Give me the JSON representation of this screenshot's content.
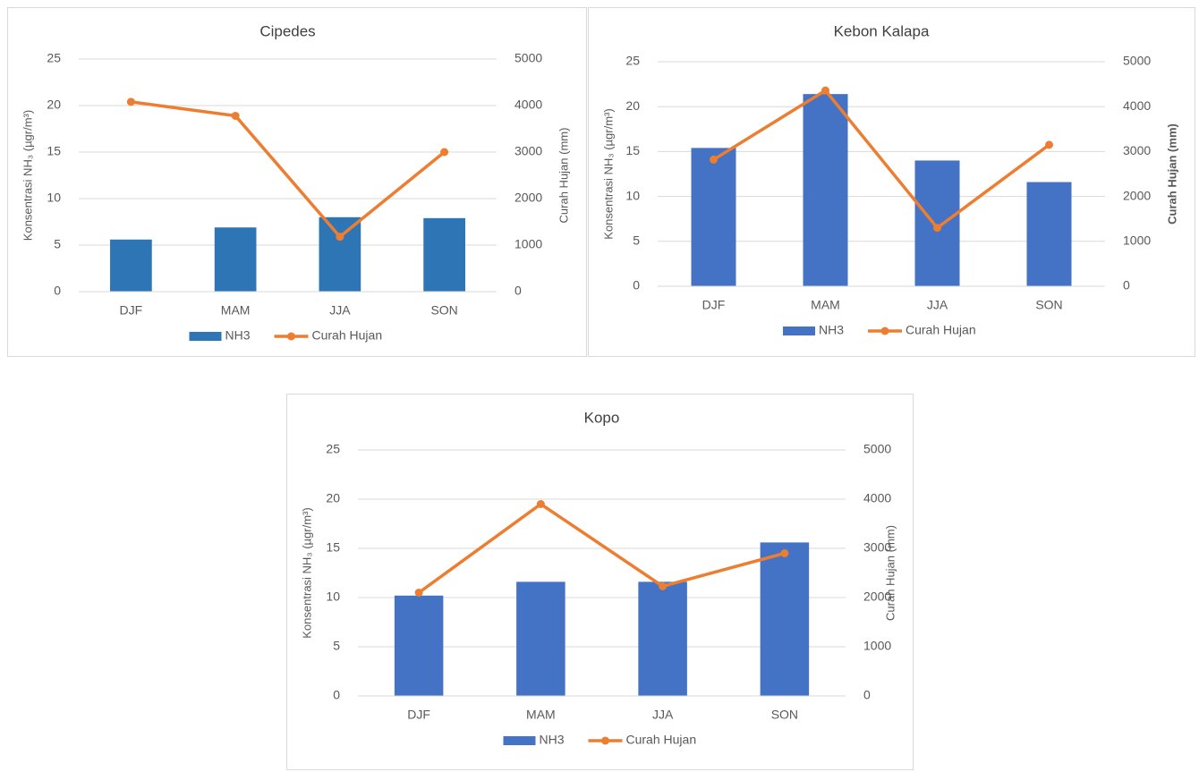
{
  "chart_data": [
    {
      "type": "combo",
      "title": "Cipedes",
      "categories": [
        "DJF",
        "MAM",
        "JJA",
        "SON"
      ],
      "ylabel": "Konsentrasi NH₃ (µgr/m³)",
      "y2label": "Curah Hujan (mm)",
      "ylim": [
        0,
        25
      ],
      "yticks": [
        0,
        5,
        10,
        15,
        20,
        25
      ],
      "y2lim": [
        0,
        5000
      ],
      "y2ticks": [
        0,
        1000,
        2000,
        3000,
        4000,
        5000
      ],
      "grid": true,
      "series": [
        {
          "name": "NH3",
          "type": "bar",
          "color": "#2e75b6",
          "values": [
            5.6,
            6.9,
            8.0,
            7.9
          ]
        },
        {
          "name": "Curah Hujan",
          "type": "line",
          "axis": "y2",
          "color": "#ed7d31",
          "values": [
            4080,
            3780,
            1180,
            3000
          ]
        }
      ]
    },
    {
      "type": "combo",
      "title": "Kebon Kalapa",
      "categories": [
        "DJF",
        "MAM",
        "JJA",
        "SON"
      ],
      "ylabel": "Konsentrasi NH₃ (µgr/m³)",
      "y2label": "Curah Hujan (mm)",
      "ylim": [
        0,
        25
      ],
      "yticks": [
        0,
        5,
        10,
        15,
        20,
        25
      ],
      "y2lim": [
        0,
        5000
      ],
      "y2ticks": [
        0,
        1000,
        2000,
        3000,
        4000,
        5000
      ],
      "grid": true,
      "series": [
        {
          "name": "NH3",
          "type": "bar",
          "color": "#4472c4",
          "values": [
            15.4,
            21.4,
            14.0,
            11.6
          ]
        },
        {
          "name": "Curah Hujan",
          "type": "line",
          "axis": "y2",
          "color": "#ed7d31",
          "values": [
            2820,
            4360,
            1300,
            3150
          ]
        }
      ]
    },
    {
      "type": "combo",
      "title": "Kopo",
      "categories": [
        "DJF",
        "MAM",
        "JJA",
        "SON"
      ],
      "ylabel": "Konsentrasi NH₃ (µgr/m³)",
      "y2label": "Curah Hujan (mm)",
      "ylim": [
        0,
        25
      ],
      "yticks": [
        0,
        5,
        10,
        15,
        20,
        25
      ],
      "y2lim": [
        0,
        5000
      ],
      "y2ticks": [
        0,
        1000,
        2000,
        3000,
        4000,
        5000
      ],
      "grid": true,
      "series": [
        {
          "name": "NH3",
          "type": "bar",
          "color": "#4472c4",
          "values": [
            10.2,
            11.6,
            11.6,
            15.6
          ]
        },
        {
          "name": "Curah Hujan",
          "type": "line",
          "axis": "y2",
          "color": "#ed7d31",
          "values": [
            2100,
            3900,
            2230,
            2900
          ]
        }
      ]
    }
  ]
}
